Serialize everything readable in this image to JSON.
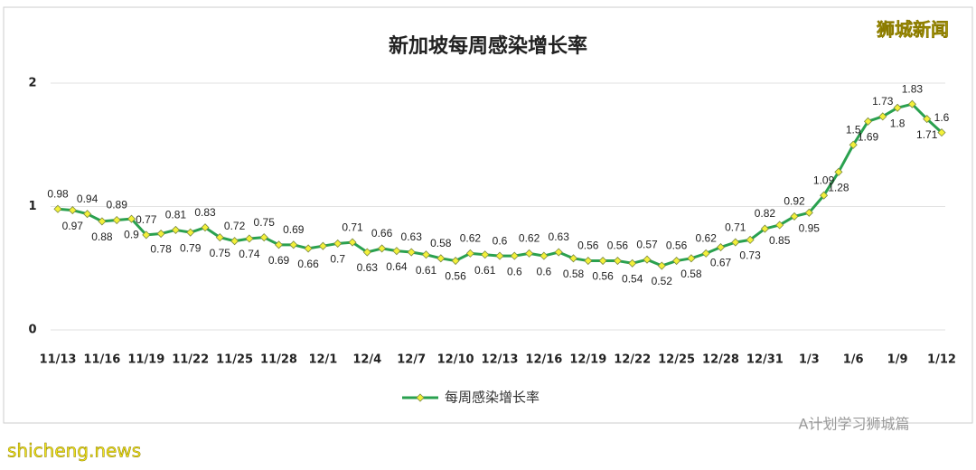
{
  "chart_data": {
    "type": "line",
    "title": "新加坡每周感染增长率",
    "legend": "每周感染增长率",
    "annotations": [
      "狮城新闻",
      "A计划学习狮城篇",
      "shicheng.news"
    ],
    "categories": [
      "11/13",
      null,
      null,
      "11/16",
      null,
      null,
      "11/19",
      null,
      null,
      "11/22",
      null,
      null,
      "11/25",
      null,
      null,
      "11/28",
      null,
      null,
      "12/1",
      null,
      null,
      "12/4",
      null,
      null,
      "12/7",
      null,
      null,
      "12/10",
      null,
      null,
      "12/13",
      null,
      null,
      "12/16",
      null,
      null,
      "12/19",
      null,
      null,
      "12/22",
      null,
      null,
      "12/25",
      null,
      null,
      "12/28",
      null,
      null,
      "12/31",
      null,
      null,
      "1/3",
      null,
      null,
      "1/6",
      null,
      null,
      "1/9",
      null,
      null,
      "1/12"
    ],
    "series": [
      {
        "name": "每周感染增长率",
        "color": "#2aa14f",
        "marker_color": "#f3f03a",
        "values": [
          0.98,
          0.97,
          0.94,
          0.88,
          0.89,
          0.9,
          0.77,
          0.78,
          0.81,
          0.79,
          0.83,
          0.75,
          0.72,
          0.74,
          0.75,
          0.69,
          0.69,
          0.66,
          0.68,
          0.7,
          0.71,
          0.63,
          0.66,
          0.64,
          0.63,
          0.61,
          0.58,
          0.56,
          0.62,
          0.61,
          0.6,
          0.6,
          0.62,
          0.6,
          0.63,
          0.58,
          0.56,
          0.56,
          0.56,
          0.54,
          0.57,
          0.52,
          0.56,
          0.58,
          0.62,
          0.67,
          0.71,
          0.73,
          0.82,
          0.85,
          0.92,
          0.95,
          1.09,
          1.28,
          1.5,
          1.69,
          1.73,
          1.8,
          1.83,
          1.71,
          1.6
        ],
        "value_labels": [
          "0.98",
          "0.97",
          "0.94",
          "0.88",
          "0.89",
          "0.9",
          "0.77",
          "0.78",
          "0.81",
          "0.79",
          "0.83",
          "0.75",
          "0.72",
          "0.74",
          "0.75",
          "0.69",
          "0.69",
          "0.66",
          null,
          "0.7",
          "0.71",
          "0.63",
          "0.66",
          "0.64",
          "0.63",
          "0.61",
          "0.58",
          "0.56",
          "0.62",
          "0.61",
          "0.6",
          "0.6",
          "0.62",
          "0.6",
          "0.63",
          "0.58",
          "0.56",
          "0.56",
          "0.56",
          "0.54",
          "0.57",
          "0.52",
          "0.56",
          "0.58",
          "0.62",
          "0.67",
          "0.71",
          "0.73",
          "0.82",
          "0.85",
          "0.92",
          "0.95",
          "1.09",
          "1.28",
          "1.5",
          "1.69",
          "1.73",
          "1.8",
          "1.83",
          "1.71",
          "1.6"
        ]
      }
    ],
    "ylim": [
      0,
      2
    ],
    "yticks": [
      0,
      1,
      2
    ],
    "grid": true
  }
}
